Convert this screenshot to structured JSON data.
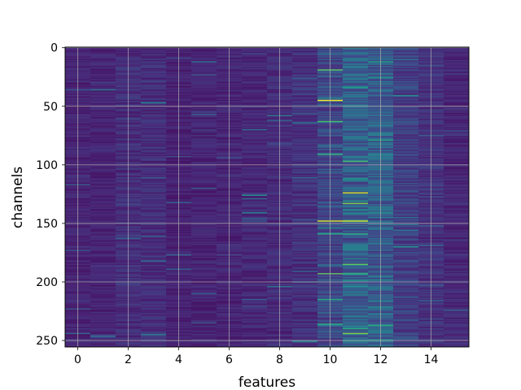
{
  "chart_data": {
    "type": "heatmap",
    "title": "",
    "xlabel": "features",
    "ylabel": "channels",
    "colormap": "viridis",
    "n_features": 16,
    "n_channels": 256,
    "value_range": [
      0,
      1
    ],
    "xlim": [
      -0.5,
      15.5
    ],
    "ylim": [
      255.5,
      -0.5
    ],
    "x_ticks": [
      0,
      2,
      4,
      6,
      8,
      10,
      12,
      14
    ],
    "y_ticks": [
      0,
      50,
      100,
      150,
      200,
      250
    ],
    "grid": true,
    "feature_column_noise_levels": [
      0.1,
      0.1,
      0.13,
      0.13,
      0.09,
      0.1,
      0.1,
      0.11,
      0.12,
      0.14,
      0.22,
      0.3,
      0.3,
      0.19,
      0.14,
      0.11
    ],
    "high_value_cells": [
      {
        "feature": 10,
        "channel": 19,
        "value": 0.75
      },
      {
        "feature": 10,
        "channel": 45,
        "value": 1.0
      },
      {
        "feature": 10,
        "channel": 63,
        "value": 0.7
      },
      {
        "feature": 10,
        "channel": 91,
        "value": 0.65
      },
      {
        "feature": 10,
        "channel": 148,
        "value": 0.95
      },
      {
        "feature": 10,
        "channel": 159,
        "value": 0.6
      },
      {
        "feature": 10,
        "channel": 193,
        "value": 0.75
      },
      {
        "feature": 10,
        "channel": 215,
        "value": 0.6
      },
      {
        "feature": 10,
        "channel": 236,
        "value": 0.6
      },
      {
        "feature": 11,
        "channel": 34,
        "value": 0.55
      },
      {
        "feature": 11,
        "channel": 97,
        "value": 0.7
      },
      {
        "feature": 11,
        "channel": 124,
        "value": 0.95
      },
      {
        "feature": 11,
        "channel": 133,
        "value": 0.8
      },
      {
        "feature": 11,
        "channel": 148,
        "value": 0.95
      },
      {
        "feature": 11,
        "channel": 185,
        "value": 0.75
      },
      {
        "feature": 11,
        "channel": 193,
        "value": 0.65
      },
      {
        "feature": 11,
        "channel": 244,
        "value": 0.8
      },
      {
        "feature": 12,
        "channel": 12,
        "value": 0.55
      },
      {
        "feature": 12,
        "channel": 141,
        "value": 0.5
      },
      {
        "feature": 12,
        "channel": 237,
        "value": 0.6
      },
      {
        "feature": 13,
        "channel": 41,
        "value": 0.5
      },
      {
        "feature": 7,
        "channel": 126,
        "value": 0.5
      },
      {
        "feature": 7,
        "channel": 141,
        "value": 0.45
      },
      {
        "feature": 3,
        "channel": 47,
        "value": 0.45
      },
      {
        "feature": 8,
        "channel": 58,
        "value": 0.4
      }
    ]
  }
}
